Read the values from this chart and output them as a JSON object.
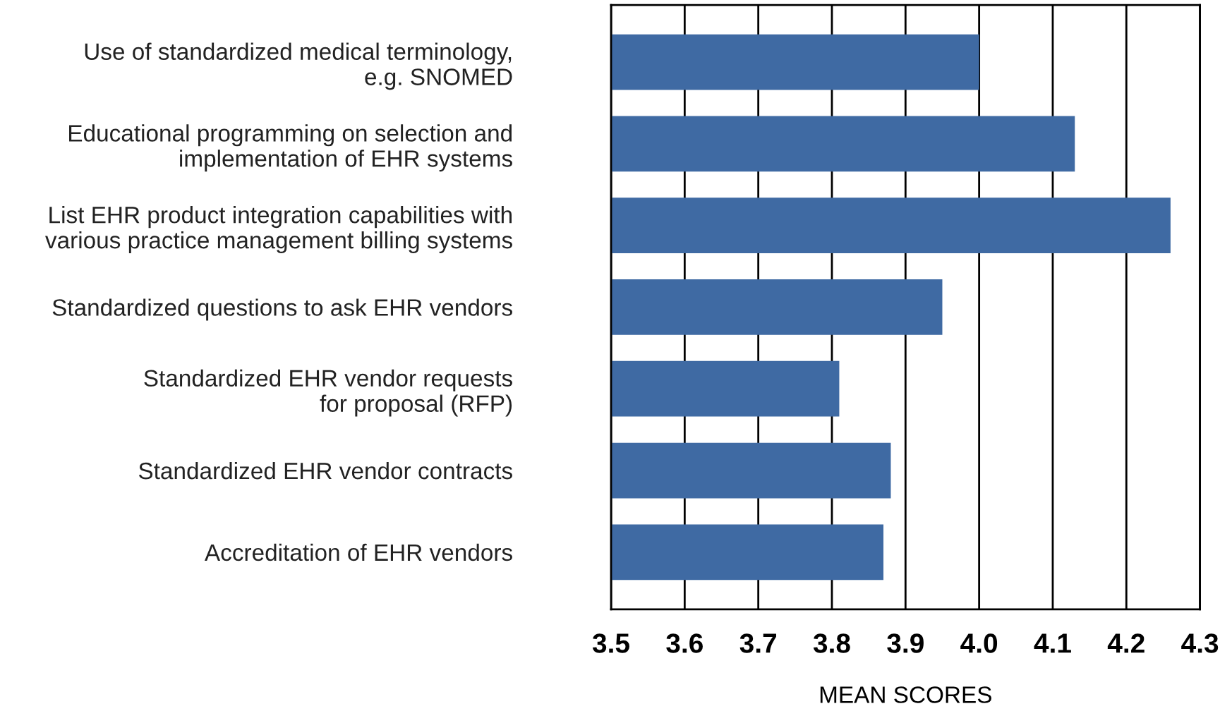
{
  "chart_data": {
    "type": "bar",
    "orientation": "horizontal",
    "xlabel": "MEAN SCORES",
    "categories": [
      "Use of standardized medical terminology,\ne.g. SNOMED",
      "Educational programming on selection and\nimplementation of EHR systems",
      "List EHR product integration capabilities with\nvarious practice management billing systems",
      "Standardized questions to ask EHR vendors",
      "Standardized EHR vendor requests\nfor proposal (RFP)",
      "Standardized EHR vendor contracts",
      "Accreditation of EHR vendors"
    ],
    "values": [
      4.0,
      4.13,
      4.26,
      3.95,
      3.81,
      3.88,
      3.87
    ],
    "color": "#3f6aa3",
    "xlim": [
      3.5,
      4.3
    ],
    "xticks": [
      3.5,
      3.6,
      3.7,
      3.8,
      3.9,
      {
        "value": 4,
        "label": "4.0"
      },
      4.1,
      4.2,
      4.3
    ],
    "grid": "x"
  }
}
